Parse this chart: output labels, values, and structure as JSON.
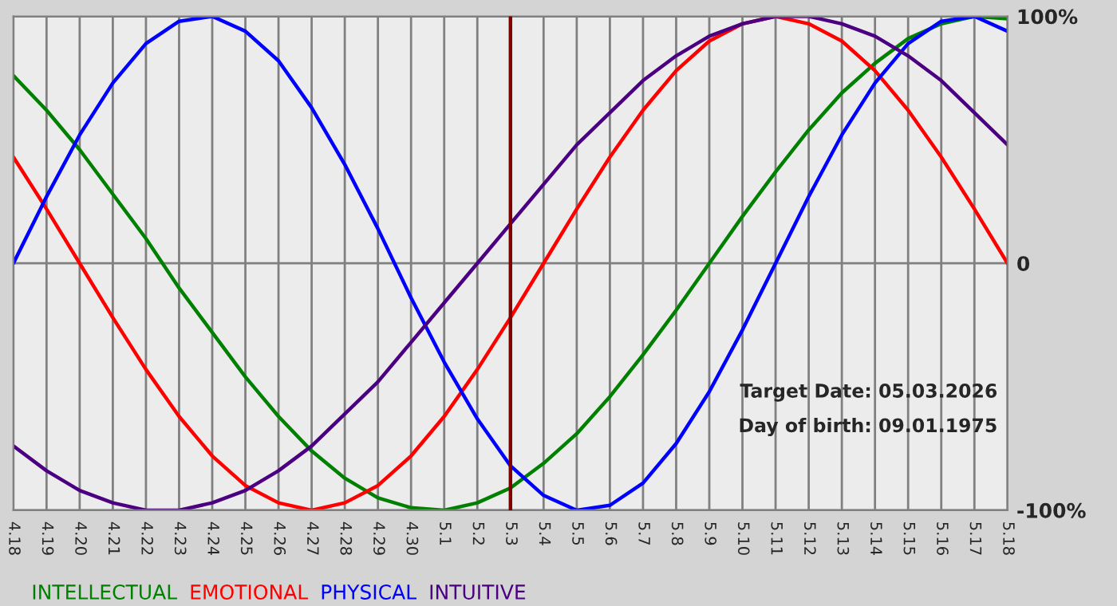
{
  "chart_data": {
    "type": "line",
    "categories": [
      "4.18",
      "4.19",
      "4.20",
      "4.21",
      "4.22",
      "4.23",
      "4.24",
      "4.25",
      "4.26",
      "4.27",
      "4.28",
      "4.29",
      "4.30",
      "5.1",
      "5.2",
      "5.3",
      "5.4",
      "5.5",
      "5.6",
      "5.7",
      "5.8",
      "5.9",
      "5.10",
      "5.11",
      "5.12",
      "5.13",
      "5.14",
      "5.15",
      "5.16",
      "5.17",
      "5.18"
    ],
    "series": [
      {
        "name": "INTELLECTUAL",
        "color": "#008000",
        "values": [
          76,
          62,
          46,
          28,
          10,
          -10,
          -28,
          -46,
          -62,
          -76,
          -87,
          -95,
          -99,
          -100,
          -97,
          -91,
          -81,
          -69,
          -54,
          -37,
          -19,
          0,
          19,
          37,
          54,
          69,
          81,
          91,
          97,
          100,
          99
        ]
      },
      {
        "name": "EMOTIONAL",
        "color": "#ff0000",
        "values": [
          43,
          22,
          0,
          -22,
          -43,
          -62,
          -78,
          -90,
          -97,
          -100,
          -97,
          -90,
          -78,
          -62,
          -43,
          -22,
          0,
          22,
          43,
          62,
          78,
          90,
          97,
          100,
          97,
          90,
          78,
          62,
          43,
          22,
          0
        ]
      },
      {
        "name": "PHYSICAL",
        "color": "#0000ff",
        "values": [
          0,
          27,
          52,
          73,
          89,
          98,
          100,
          94,
          82,
          63,
          40,
          14,
          -14,
          -40,
          -63,
          -82,
          -94,
          -100,
          -98,
          -89,
          -73,
          -52,
          -27,
          0,
          27,
          52,
          73,
          89,
          98,
          100,
          94
        ]
      },
      {
        "name": "INTUITIVE",
        "color": "#4b0082",
        "values": [
          -74,
          -84,
          -92,
          -97,
          -100,
          -100,
          -97,
          -92,
          -84,
          -74,
          -61,
          -48,
          -32,
          -16,
          0,
          16,
          32,
          48,
          61,
          74,
          84,
          92,
          97,
          100,
          100,
          97,
          92,
          84,
          74,
          61,
          48
        ]
      }
    ],
    "ylim": [
      -100,
      100
    ],
    "yticks": [
      {
        "value": 100,
        "label": "100%"
      },
      0,
      {
        "value": -100,
        "label": "-100%"
      }
    ],
    "ref_lines": [
      {
        "axis": "x",
        "value": "5.3",
        "color": "#800000"
      }
    ],
    "annotations": [
      "Target Date: 05.03.2026",
      "Day of birth: 09.01.1975"
    ],
    "grid": true,
    "legend": "bottom",
    "marker": "none",
    "line_style": "solid"
  }
}
